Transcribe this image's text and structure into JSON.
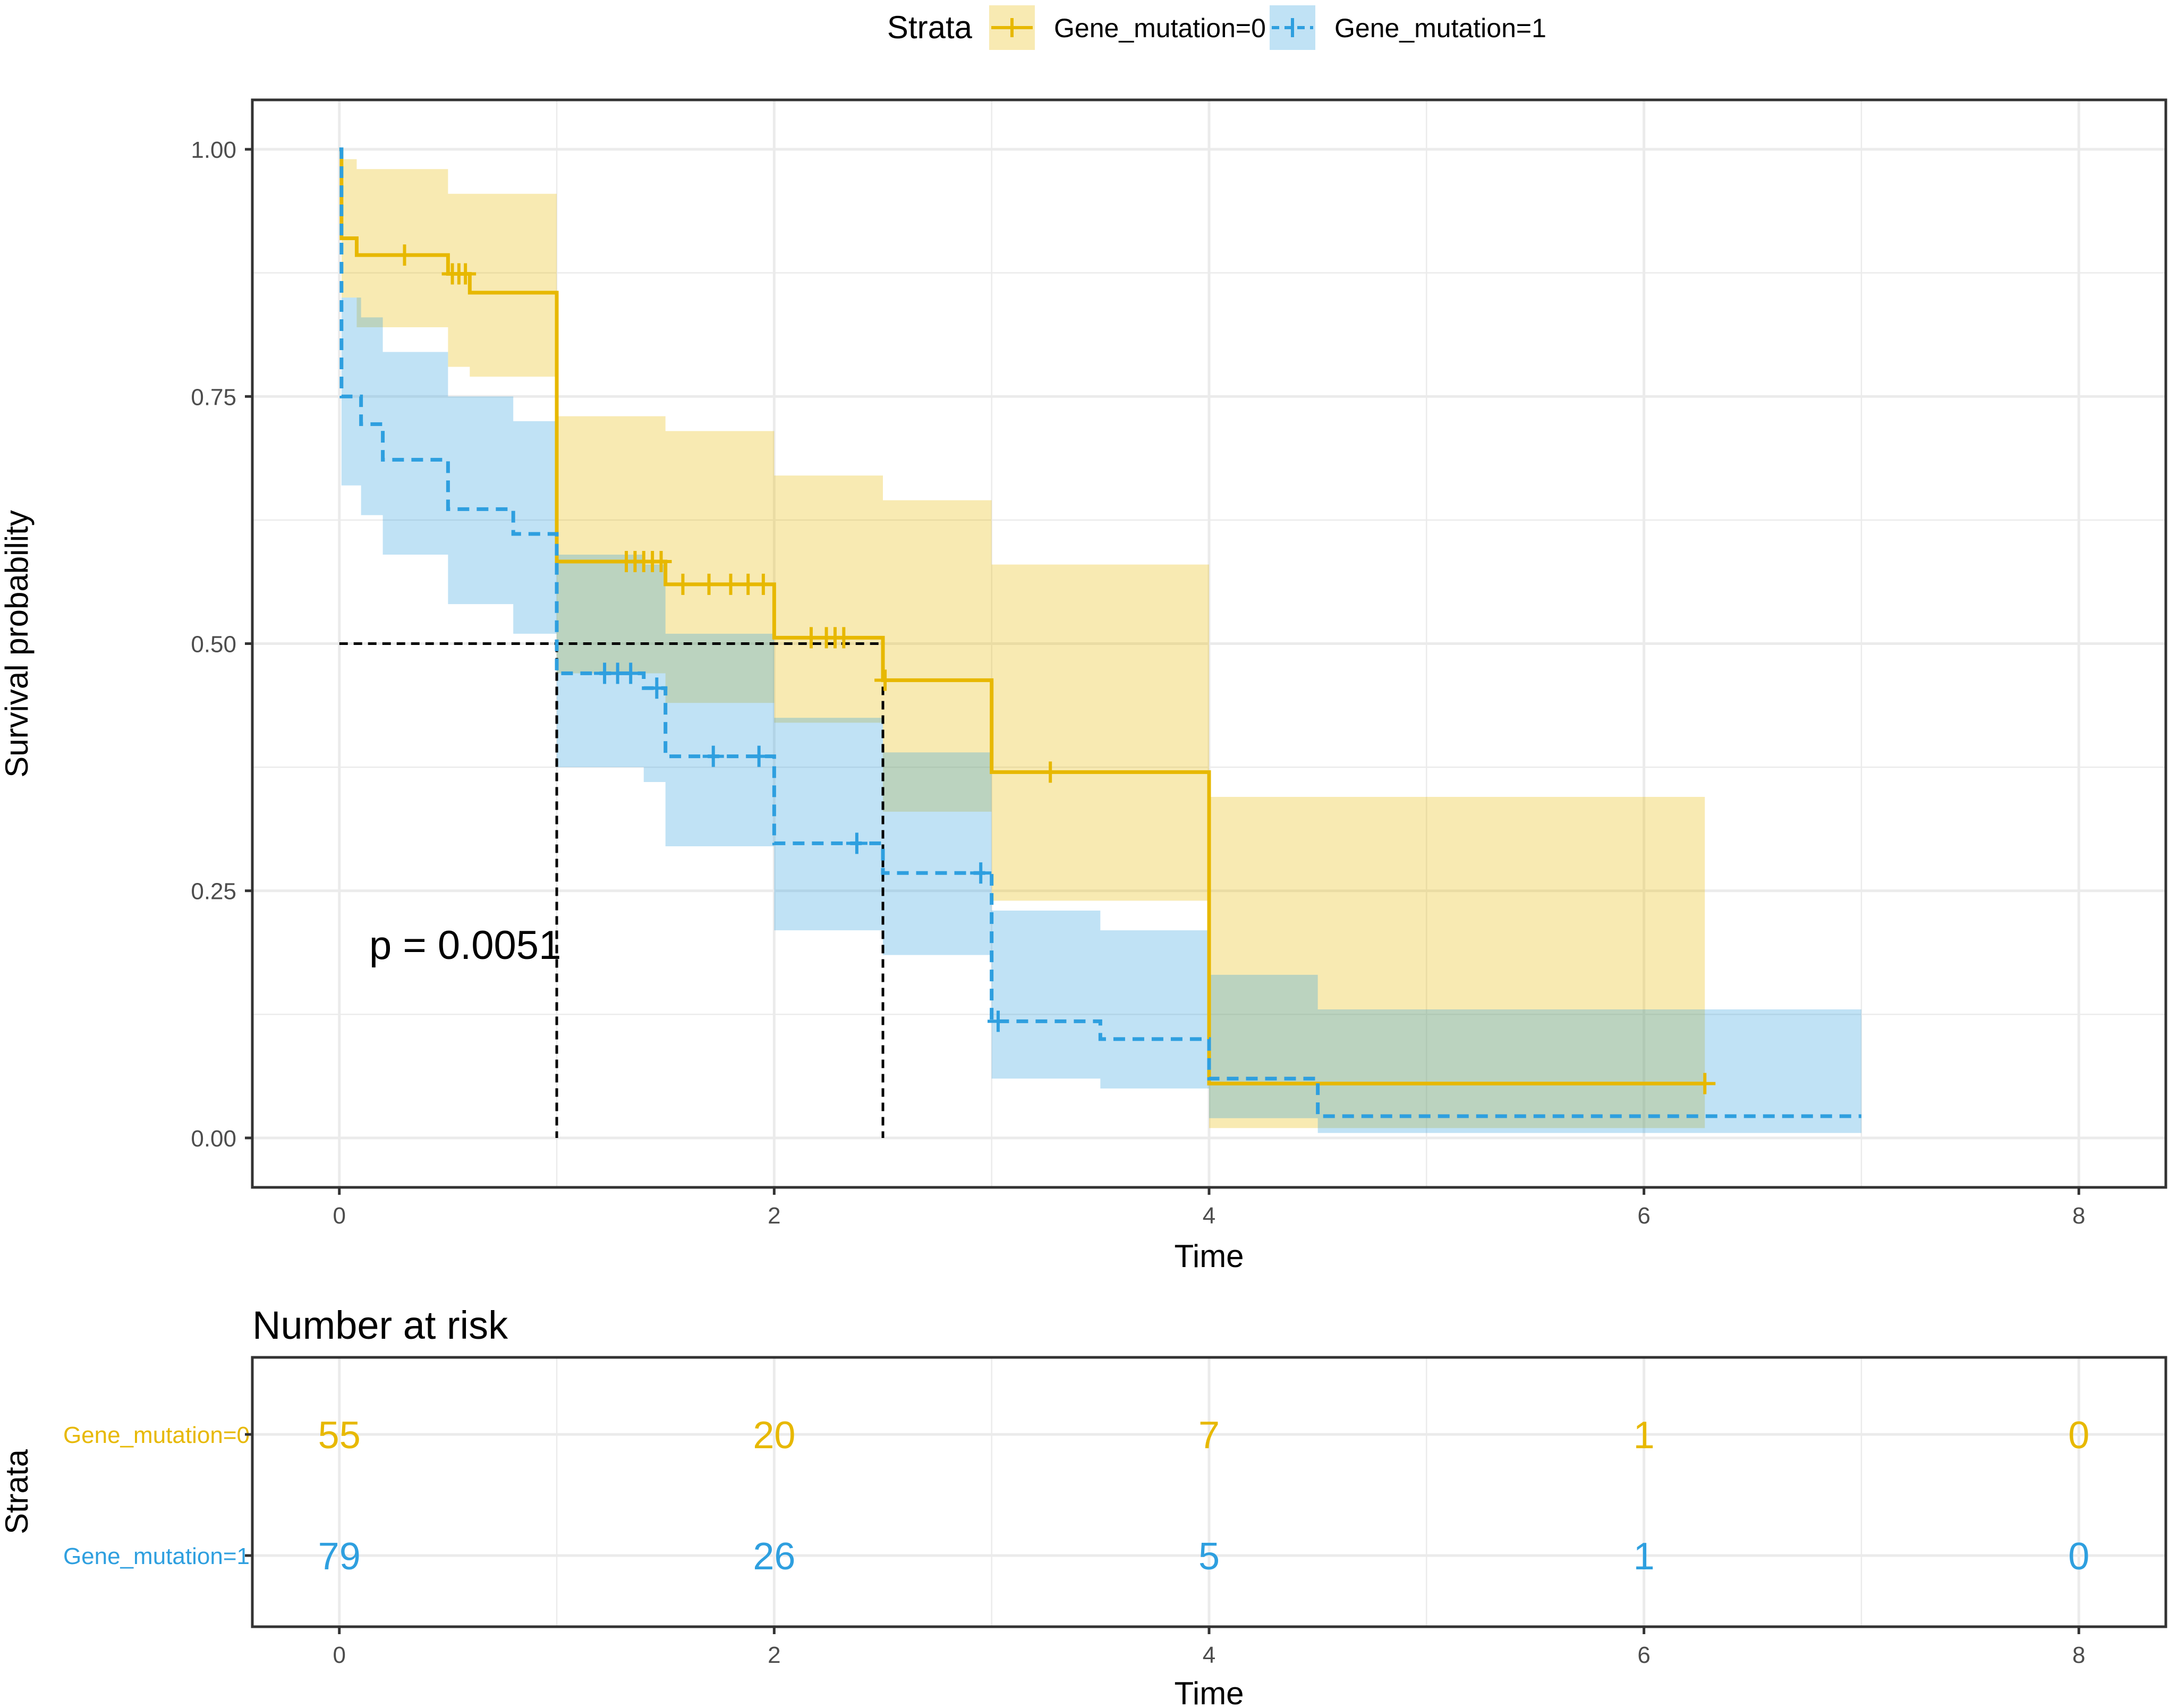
{
  "legend": {
    "title": "Strata",
    "entries": [
      "Gene_mutation=0",
      "Gene_mutation=1"
    ]
  },
  "colors": {
    "mut0": "#E7B800",
    "mut1": "#2E9FDF",
    "grid": "#EBEBEB",
    "frame": "#333333",
    "median": "#000000"
  },
  "chart_data": [
    {
      "type": "line",
      "subtype": "kaplan-meier",
      "title": "",
      "xlabel": "Time",
      "ylabel": "Survival probability",
      "xlim": [
        -0.4,
        8.4
      ],
      "ylim": [
        -0.05,
        1.05
      ],
      "x_ticks": [
        0,
        2,
        4,
        6,
        8
      ],
      "x_tick_labels": [
        "0",
        "2",
        "4",
        "6",
        "8"
      ],
      "y_ticks": [
        0,
        0.25,
        0.5,
        0.75,
        1
      ],
      "y_tick_labels": [
        "0.00",
        "0.25",
        "0.50",
        "0.75",
        "1.00"
      ],
      "grid": true,
      "legend_position": "top",
      "annotation": "p = 0.0051",
      "annotation_pos": {
        "x": 0.55,
        "y": 0.19
      },
      "median_survival": {
        "y": 0.5,
        "times": [
          1.0,
          2.5
        ]
      },
      "series": [
        {
          "name": "Gene_mutation=0",
          "dashed": false,
          "steps": [
            [
              0,
              1.0
            ],
            [
              0.01,
              0.91
            ],
            [
              0.08,
              0.893
            ],
            [
              0.5,
              0.874
            ],
            [
              0.6,
              0.855
            ],
            [
              1.0,
              0.583
            ],
            [
              1.5,
              0.56
            ],
            [
              2.0,
              0.506
            ],
            [
              2.5,
              0.463
            ],
            [
              3.0,
              0.37
            ],
            [
              4.0,
              0.055
            ],
            [
              6.28,
              0.055
            ]
          ],
          "ci": [
            [
              0,
              1.0,
              1.0
            ],
            [
              0.01,
              0.99,
              0.85
            ],
            [
              0.08,
              0.98,
              0.82
            ],
            [
              0.5,
              0.955,
              0.78
            ],
            [
              0.6,
              0.955,
              0.77
            ],
            [
              1.0,
              0.73,
              0.47
            ],
            [
              1.5,
              0.715,
              0.44
            ],
            [
              2.0,
              0.67,
              0.42
            ],
            [
              2.5,
              0.645,
              0.33
            ],
            [
              3.0,
              0.58,
              0.24
            ],
            [
              4.0,
              0.345,
              0.01
            ],
            [
              6.28,
              0.345,
              0.01
            ]
          ],
          "censors": [
            [
              0.3,
              0.893
            ],
            [
              0.52,
              0.874
            ],
            [
              0.55,
              0.874
            ],
            [
              0.58,
              0.874
            ],
            [
              1.32,
              0.583
            ],
            [
              1.36,
              0.583
            ],
            [
              1.4,
              0.583
            ],
            [
              1.44,
              0.583
            ],
            [
              1.48,
              0.583
            ],
            [
              1.58,
              0.56
            ],
            [
              1.7,
              0.56
            ],
            [
              1.8,
              0.56
            ],
            [
              1.88,
              0.56
            ],
            [
              1.95,
              0.56
            ],
            [
              2.17,
              0.506
            ],
            [
              2.24,
              0.506
            ],
            [
              2.28,
              0.506
            ],
            [
              2.32,
              0.506
            ],
            [
              2.51,
              0.463
            ],
            [
              3.27,
              0.37
            ],
            [
              6.28,
              0.055
            ]
          ]
        },
        {
          "name": "Gene_mutation=1",
          "dashed": true,
          "steps": [
            [
              0,
              1.0
            ],
            [
              0.01,
              0.75
            ],
            [
              0.1,
              0.722
            ],
            [
              0.2,
              0.686
            ],
            [
              0.5,
              0.636
            ],
            [
              0.8,
              0.611
            ],
            [
              1.0,
              0.47
            ],
            [
              1.4,
              0.455
            ],
            [
              1.5,
              0.386
            ],
            [
              2.0,
              0.298
            ],
            [
              2.5,
              0.268
            ],
            [
              3.0,
              0.118
            ],
            [
              3.5,
              0.1
            ],
            [
              4.0,
              0.06
            ],
            [
              4.5,
              0.022
            ],
            [
              7.0,
              0.022
            ]
          ],
          "ci": [
            [
              0,
              1.0,
              1.0
            ],
            [
              0.01,
              0.85,
              0.66
            ],
            [
              0.1,
              0.83,
              0.63
            ],
            [
              0.2,
              0.795,
              0.59
            ],
            [
              0.5,
              0.75,
              0.54
            ],
            [
              0.8,
              0.725,
              0.51
            ],
            [
              1.0,
              0.59,
              0.375
            ],
            [
              1.4,
              0.58,
              0.36
            ],
            [
              1.5,
              0.51,
              0.295
            ],
            [
              2.0,
              0.425,
              0.21
            ],
            [
              2.5,
              0.39,
              0.185
            ],
            [
              3.0,
              0.23,
              0.06
            ],
            [
              3.5,
              0.21,
              0.05
            ],
            [
              4.0,
              0.165,
              0.02
            ],
            [
              4.5,
              0.13,
              0.005
            ],
            [
              7.0,
              0.13,
              0.005
            ]
          ],
          "censors": [
            [
              1.22,
              0.47
            ],
            [
              1.28,
              0.47
            ],
            [
              1.34,
              0.47
            ],
            [
              1.46,
              0.455
            ],
            [
              1.72,
              0.386
            ],
            [
              1.93,
              0.386
            ],
            [
              2.38,
              0.298
            ],
            [
              2.95,
              0.268
            ],
            [
              3.03,
              0.118
            ]
          ]
        }
      ]
    },
    {
      "type": "table",
      "title": "Number at risk",
      "xlabel": "Time",
      "ylabel": "Strata",
      "xlim": [
        -0.4,
        8.4
      ],
      "x_ticks": [
        0,
        2,
        4,
        6,
        8
      ],
      "x_tick_labels": [
        "0",
        "2",
        "4",
        "6",
        "8"
      ],
      "rows": [
        {
          "name": "Gene_mutation=0",
          "label": "Gene_mutation=0",
          "values": [
            55,
            20,
            7,
            1,
            0
          ]
        },
        {
          "name": "Gene_mutation=1",
          "label": "Gene_mutation=1",
          "values": [
            79,
            26,
            5,
            1,
            0
          ]
        }
      ]
    }
  ]
}
